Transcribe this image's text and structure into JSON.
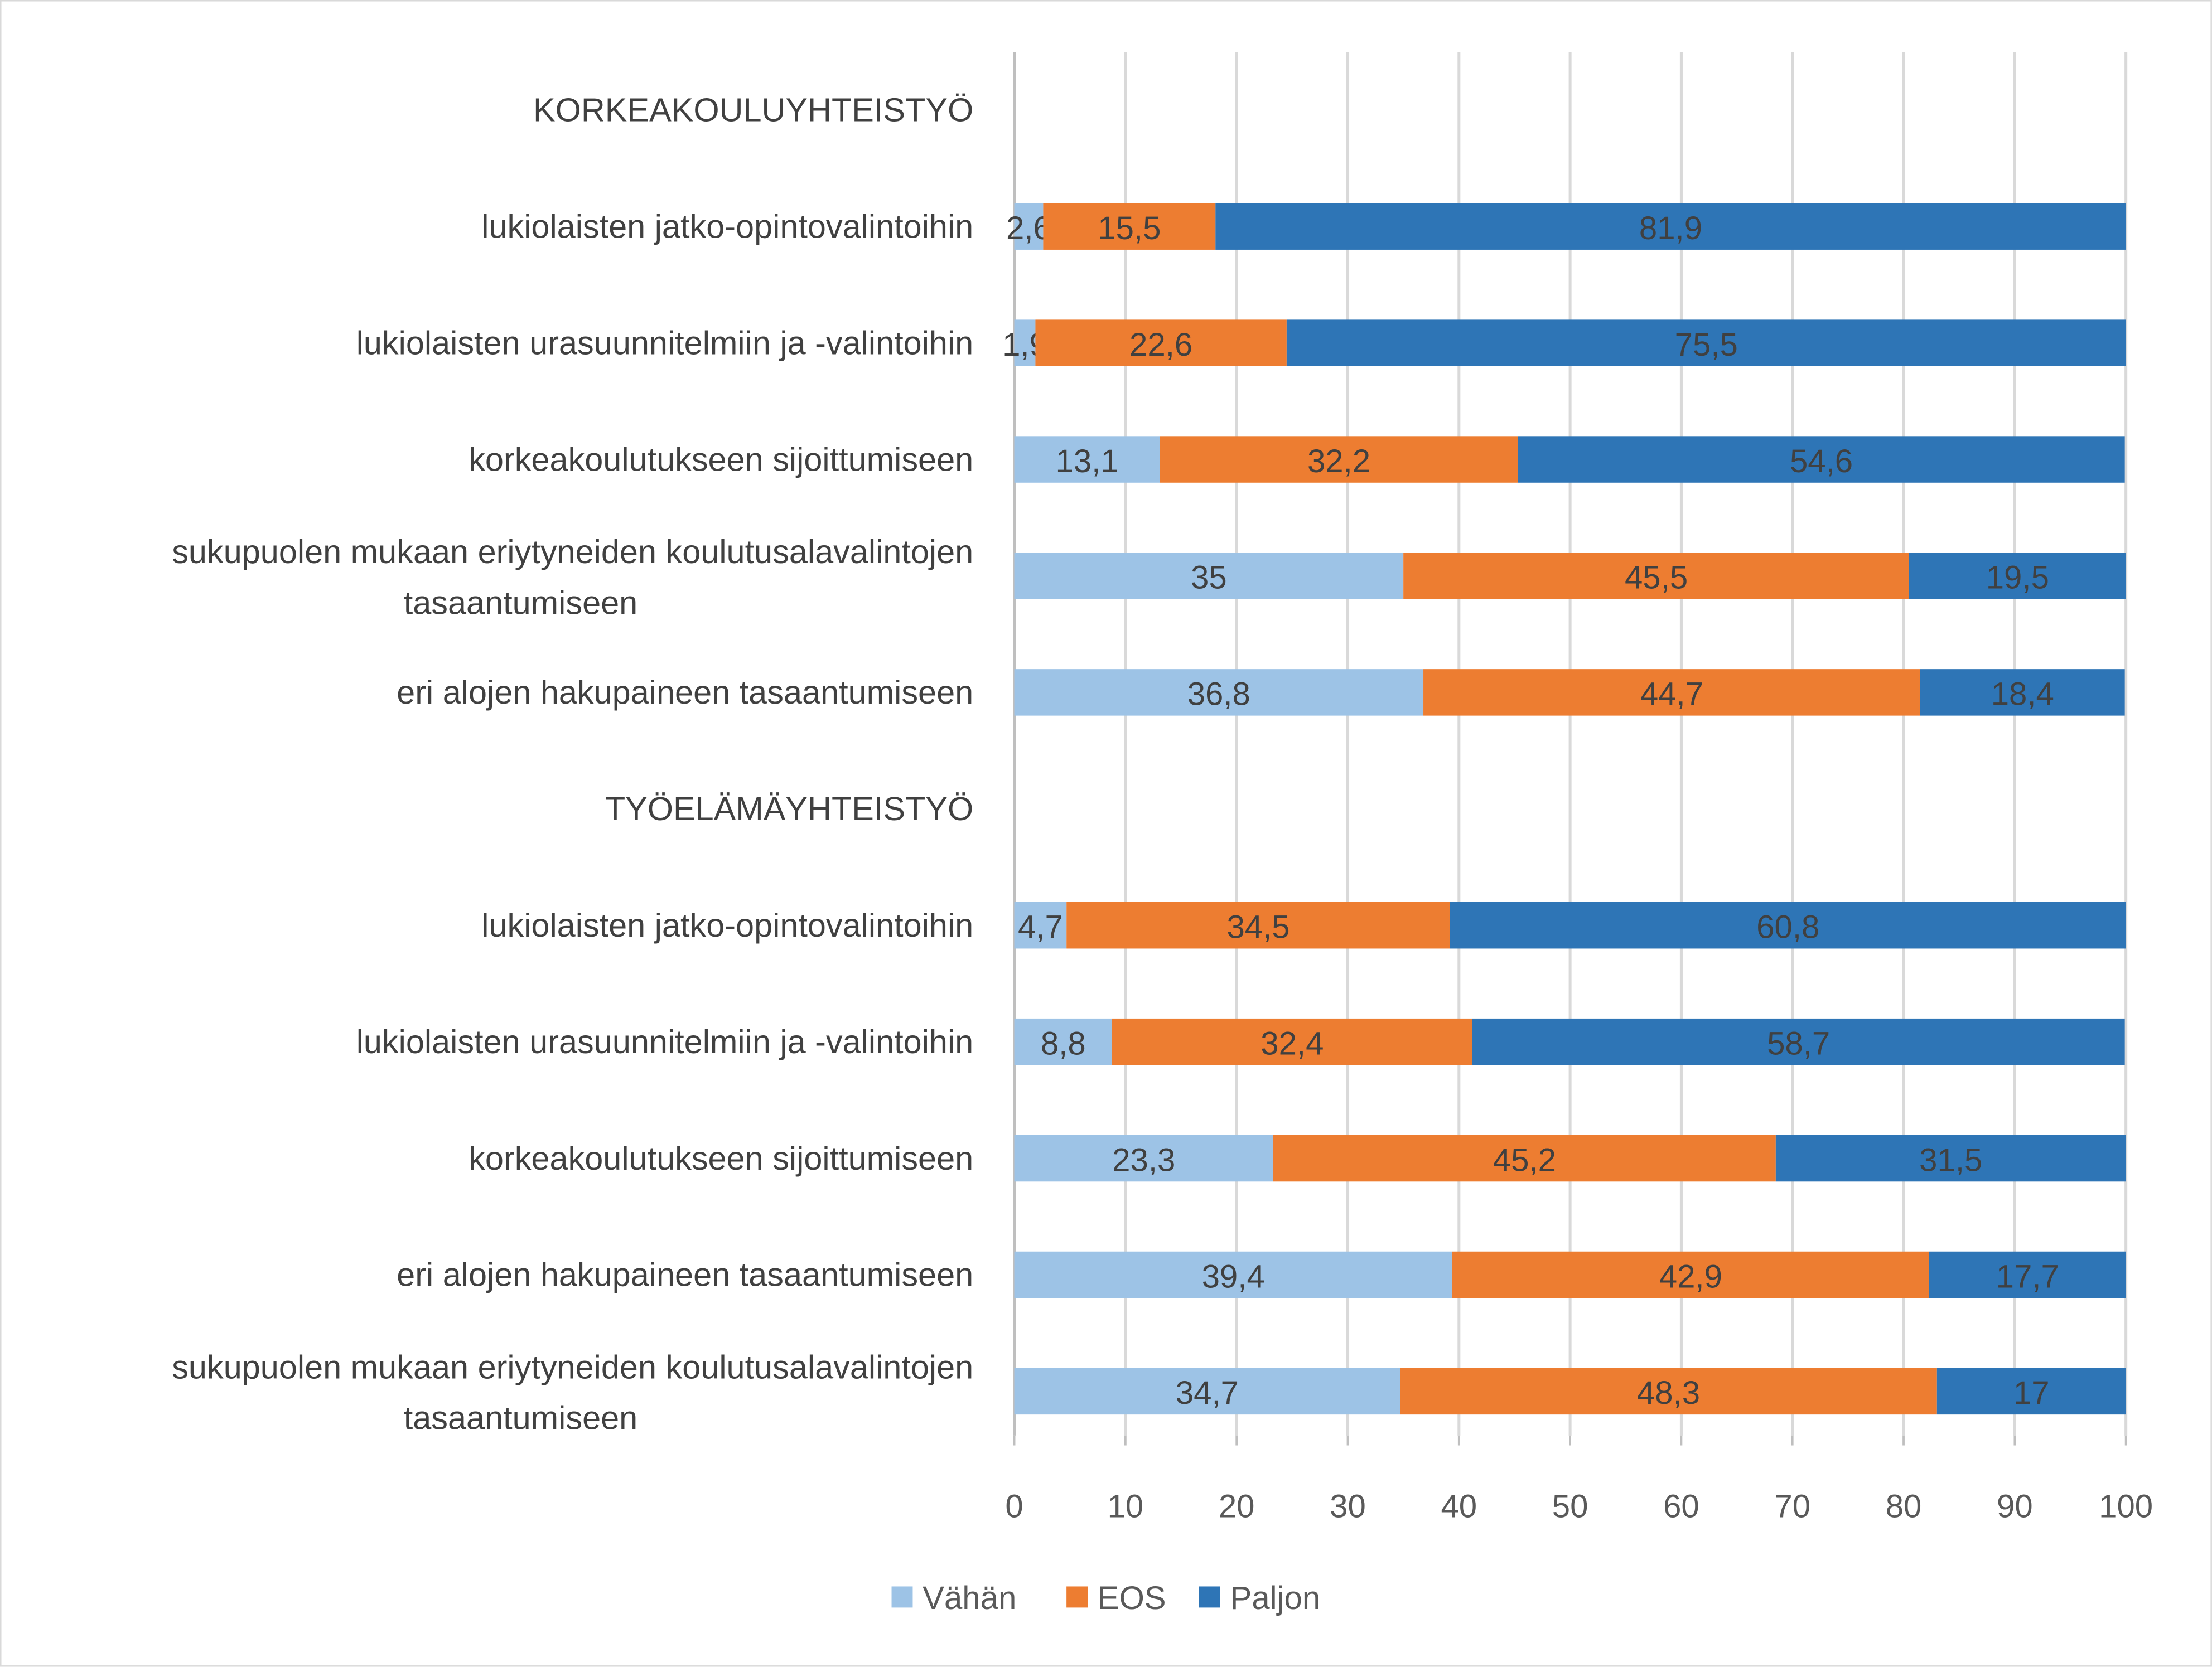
{
  "chart_data": {
    "type": "bar",
    "orientation": "horizontal",
    "stacked": true,
    "title": "",
    "xlabel": "",
    "ylabel": "",
    "xlim": [
      0,
      100
    ],
    "xticks": [
      "0",
      "10",
      "20",
      "30",
      "40",
      "50",
      "60",
      "70",
      "80",
      "90",
      "100"
    ],
    "grid": "vertical",
    "legend_position": "bottom",
    "series": [
      {
        "name": "Vähän",
        "color": "#9DC3E6"
      },
      {
        "name": "EOS",
        "color": "#ED7D31"
      },
      {
        "name": "Paljon",
        "color": "#2E75B6"
      }
    ],
    "groups": [
      {
        "title": "KORKEAKOULUYHTEISTYÖ",
        "rows": [
          {
            "label": [
              "lukiolaisten jatko-opintovalintoihin"
            ],
            "values": [
              2.6,
              15.5,
              81.9
            ],
            "labels": [
              "2,6",
              "15,5",
              "81,9"
            ]
          },
          {
            "label": [
              "lukiolaisten urasuunnitelmiin ja -valintoihin"
            ],
            "values": [
              1.9,
              22.6,
              75.5
            ],
            "labels": [
              "1,9",
              "22,6",
              "75,5"
            ]
          },
          {
            "label": [
              "korkeakoulutukseen sijoittumiseen"
            ],
            "values": [
              13.1,
              32.2,
              54.6
            ],
            "labels": [
              "13,1",
              "32,2",
              "54,6"
            ]
          },
          {
            "label": [
              "sukupuolen mukaan eriytyneiden koulutusalavalintojen",
              "tasaantumiseen"
            ],
            "values": [
              35,
              45.5,
              19.5
            ],
            "labels": [
              "35",
              "45,5",
              "19,5"
            ]
          },
          {
            "label": [
              "eri alojen hakupaineen tasaantumiseen"
            ],
            "values": [
              36.8,
              44.7,
              18.4
            ],
            "labels": [
              "36,8",
              "44,7",
              "18,4"
            ]
          }
        ]
      },
      {
        "title": "TYÖELÄMÄYHTEISTYÖ",
        "rows": [
          {
            "label": [
              "lukiolaisten jatko-opintovalintoihin"
            ],
            "values": [
              4.7,
              34.5,
              60.8
            ],
            "labels": [
              "4,7",
              "34,5",
              "60,8"
            ]
          },
          {
            "label": [
              "lukiolaisten urasuunnitelmiin ja -valintoihin"
            ],
            "values": [
              8.8,
              32.4,
              58.7
            ],
            "labels": [
              "8,8",
              "32,4",
              "58,7"
            ]
          },
          {
            "label": [
              "korkeakoulutukseen sijoittumiseen"
            ],
            "values": [
              23.3,
              45.2,
              31.5
            ],
            "labels": [
              "23,3",
              "45,2",
              "31,5"
            ]
          },
          {
            "label": [
              "eri alojen hakupaineen tasaantumiseen"
            ],
            "values": [
              39.4,
              42.9,
              17.7
            ],
            "labels": [
              "39,4",
              "42,9",
              "17,7"
            ]
          },
          {
            "label": [
              "sukupuolen mukaan eriytyneiden koulutusalavalintojen",
              "tasaantumiseen"
            ],
            "values": [
              34.7,
              48.3,
              17
            ],
            "labels": [
              "34,7",
              "48,3",
              "17"
            ]
          }
        ]
      }
    ]
  }
}
